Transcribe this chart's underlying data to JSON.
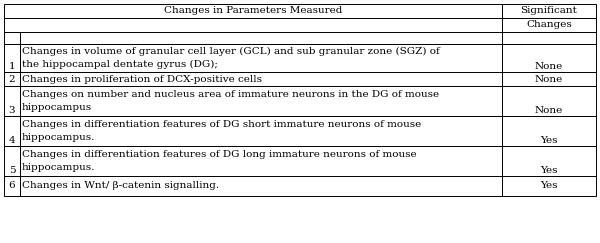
{
  "title": "Changes in Parameters Measured",
  "col2_header1": "Significant",
  "col2_header2": "Changes",
  "rows": [
    {
      "num": "1",
      "line1": "Changes in volume of granular cell layer (GCL) and sub granular zone (SGZ) of",
      "line2": "the hippocampal dentate gyrus (DG);",
      "result": "None",
      "two_line": true
    },
    {
      "num": "2",
      "line1": "Changes in proliferation of DCX-positive cells",
      "line2": "",
      "result": "None",
      "two_line": false
    },
    {
      "num": "3",
      "line1": "Changes on number and nucleus area of immature neurons in the DG of mouse",
      "line2": "hippocampus",
      "result": "None",
      "two_line": true
    },
    {
      "num": "4",
      "line1": "Changes in differentiation features of DG short immature neurons of mouse",
      "line2": "hippocampus.",
      "result": "Yes",
      "two_line": true
    },
    {
      "num": "5",
      "line1": "Changes in differentiation features of DG long immature neurons of mouse",
      "line2": "hippocampus.",
      "result": "Yes",
      "two_line": true
    },
    {
      "num": "6",
      "line1": "Changes in Wnt/ β-catenin signalling.",
      "line2": "",
      "result": "Yes",
      "two_line": false
    }
  ],
  "bg_color": "#ffffff",
  "border_color": "#000000",
  "text_color": "#000000",
  "font_size": 7.5,
  "c0": 4,
  "c1": 20,
  "c2": 502,
  "c3": 596,
  "row_tops": [
    4,
    18,
    32,
    44,
    72,
    86,
    116,
    146,
    176,
    196,
    220
  ],
  "lw": 0.7
}
